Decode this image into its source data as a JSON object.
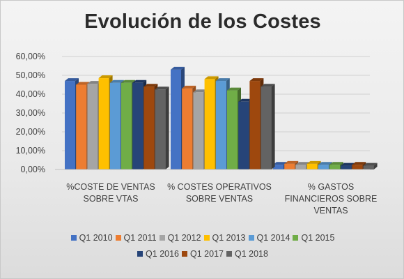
{
  "chart_data": {
    "type": "bar",
    "title": "Evolución de los Costes",
    "categories": [
      [
        "%COSTE DE VENTAS",
        "SOBRE VTAS"
      ],
      [
        "% COSTES OPERATIVOS",
        "SOBRE VENTAS"
      ],
      [
        "% GASTOS",
        "FINANCIEROS SOBRE",
        "VENTAS"
      ]
    ],
    "ylim": [
      0,
      0.6
    ],
    "yticks": [
      "0,00%",
      "10,00%",
      "20,00%",
      "30,00%",
      "40,00%",
      "50,00%",
      "60,00%"
    ],
    "grid": true,
    "legend_position": "bottom",
    "series": [
      {
        "name": "Q1 2010",
        "color": "#4472C4",
        "values": [
          0.47,
          0.53,
          0.025
        ]
      },
      {
        "name": "Q1 2011",
        "color": "#ED7D31",
        "values": [
          0.45,
          0.43,
          0.03
        ]
      },
      {
        "name": "Q1 2012",
        "color": "#A5A5A5",
        "values": [
          0.455,
          0.41,
          0.025
        ]
      },
      {
        "name": "Q1 2013",
        "color": "#FFC000",
        "values": [
          0.485,
          0.48,
          0.03
        ]
      },
      {
        "name": "Q1 2014",
        "color": "#5B9BD5",
        "values": [
          0.46,
          0.47,
          0.025
        ]
      },
      {
        "name": "Q1 2015",
        "color": "#70AD47",
        "values": [
          0.46,
          0.42,
          0.025
        ]
      },
      {
        "name": "Q1 2016",
        "color": "#264478",
        "values": [
          0.46,
          0.36,
          0.02
        ]
      },
      {
        "name": "Q1 2017",
        "color": "#9E480E",
        "values": [
          0.44,
          0.47,
          0.025
        ]
      },
      {
        "name": "Q1 2018",
        "color": "#636363",
        "values": [
          0.425,
          0.44,
          0.02
        ]
      }
    ]
  }
}
